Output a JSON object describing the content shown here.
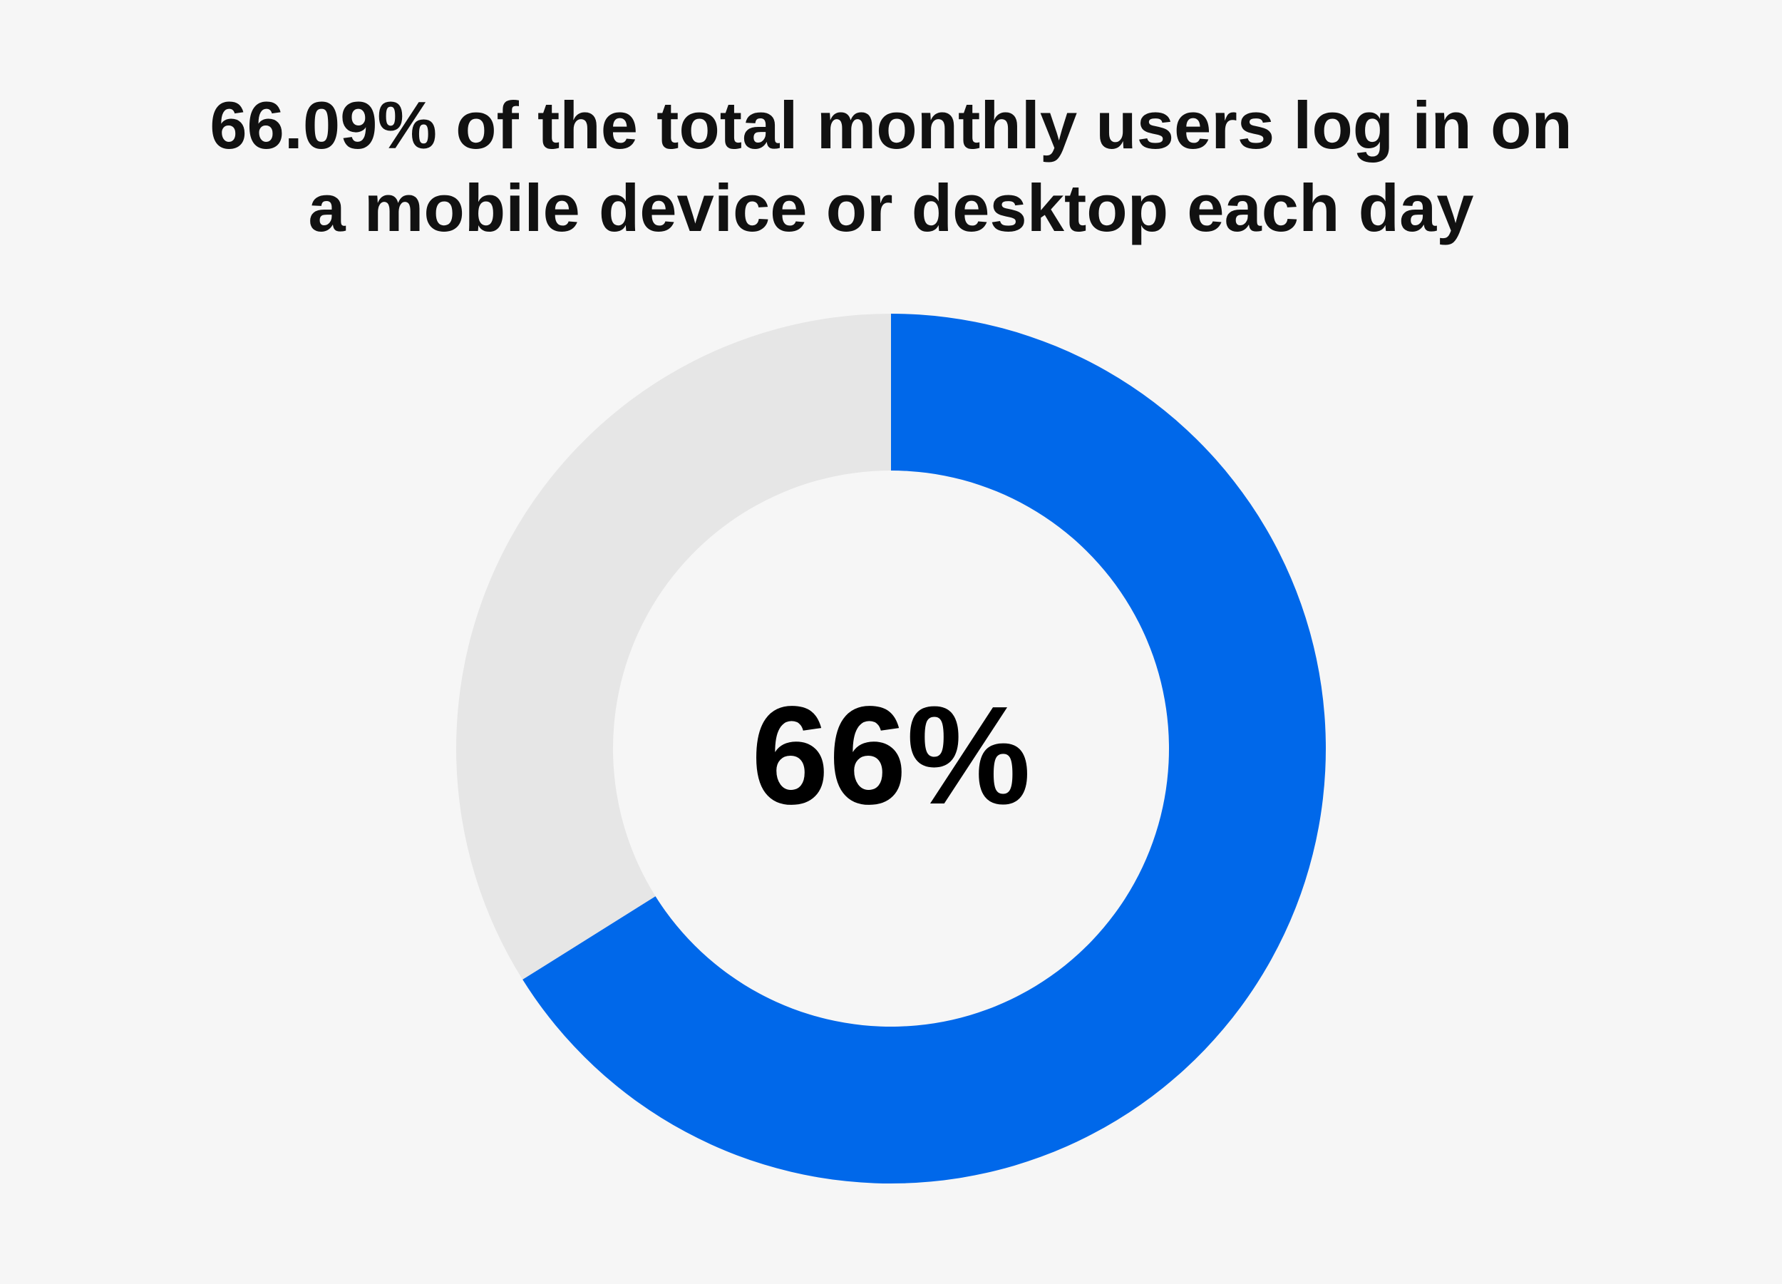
{
  "chart_data": {
    "type": "pie",
    "variant": "donut",
    "title_lines": [
      "66.09% of the total monthly users log in on",
      "a mobile device or desktop each day"
    ],
    "center_label": "66%",
    "slices": [
      {
        "value": 66.09,
        "color": "#0068ea"
      },
      {
        "value": 33.91,
        "color": "#e6e6e6"
      }
    ],
    "start": "12 o'clock",
    "direction": "clockwise",
    "legend": "none",
    "background": "#f6f6f6"
  }
}
